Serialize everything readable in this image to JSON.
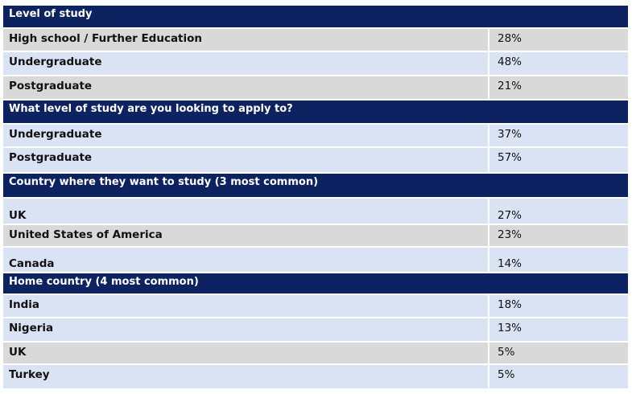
{
  "sections": [
    {
      "title": "Level of study",
      "rows": [
        {
          "label": "High school / Further Education",
          "value": "28%"
        },
        {
          "label": "Undergraduate",
          "value": "48%"
        },
        {
          "label": "Postgraduate",
          "value": "21%"
        }
      ]
    },
    {
      "title": "What level of study are you looking to apply to?",
      "rows": [
        {
          "label": "Undergraduate",
          "value": "37%"
        },
        {
          "label": "Postgraduate",
          "value": "57%"
        }
      ]
    },
    {
      "title": "Country where they want to study (3 most common)",
      "rows": [
        {
          "label": "UK",
          "value": "27%"
        },
        {
          "label": "United States of America",
          "value": "23%"
        },
        {
          "label": "Canada",
          "value": "14%"
        }
      ]
    },
    {
      "title": "Home country (4 most common)",
      "rows": [
        {
          "label": "India",
          "value": "18%"
        },
        {
          "label": "Nigeria",
          "value": "13%"
        },
        {
          "label": "UK",
          "value": "5%"
        },
        {
          "label": "Turkey",
          "value": "5%"
        }
      ]
    }
  ],
  "colors": {
    "header_bg": "#0d2260",
    "row_gray": "#d9d9d9",
    "row_blue": "#dae3f3"
  }
}
